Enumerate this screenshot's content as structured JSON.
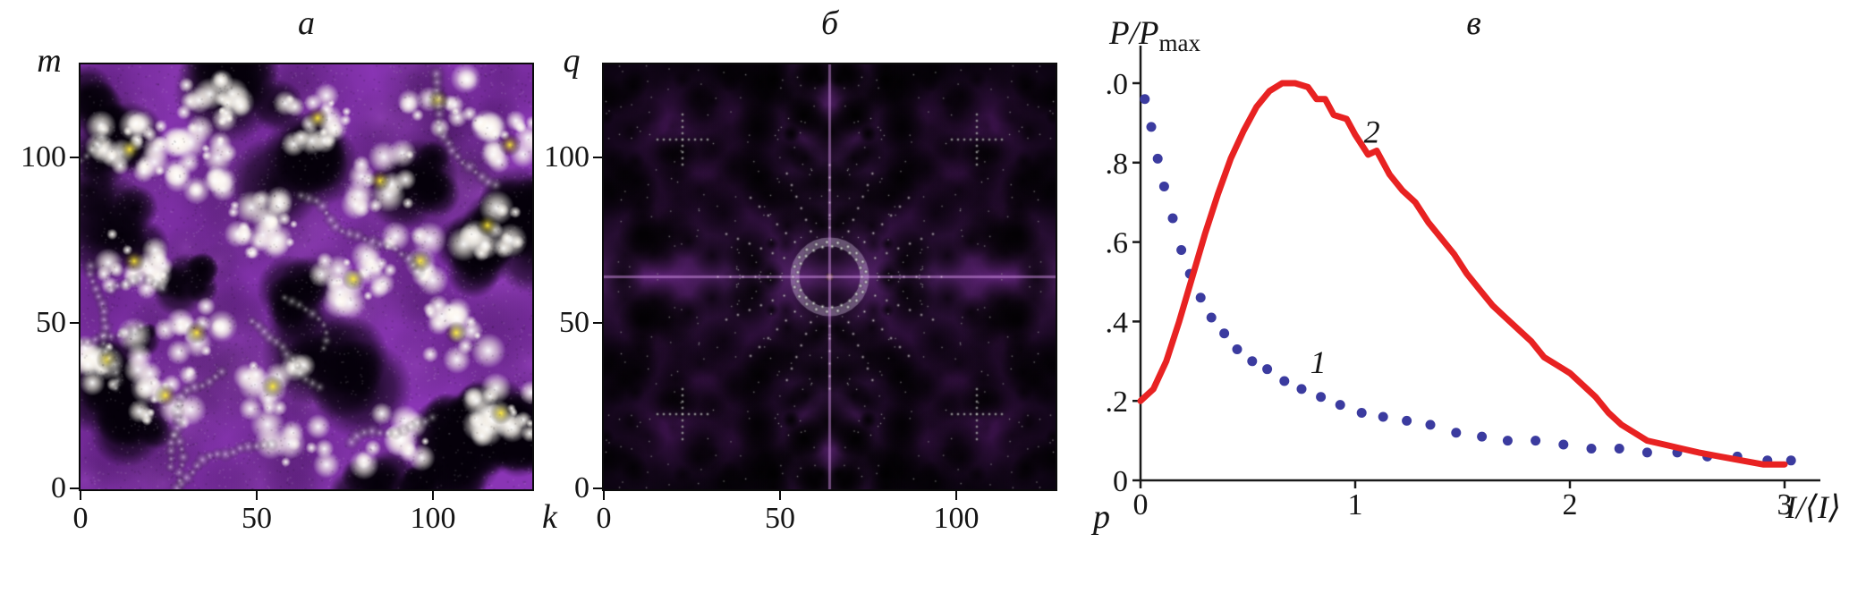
{
  "panels": {
    "a": {
      "title": "а",
      "ylabel": "m",
      "xlabel": "k",
      "yticks": [
        "100",
        "50",
        "0"
      ],
      "xticks": [
        "0",
        "50",
        "100"
      ]
    },
    "b": {
      "title": "б",
      "ylabel": "q",
      "xlabel": "p",
      "yticks": [
        "100",
        "50",
        "0"
      ],
      "xticks": [
        "0",
        "50",
        "100"
      ]
    },
    "c": {
      "title": "в",
      "ylabel_base": "P/P",
      "ylabel_sub": "max",
      "xlabel": "I/⟨I⟩"
    }
  },
  "chart_data": [
    {
      "panel": "а",
      "type": "heatmap",
      "content": "speckle intensity field with bright white-yellow spots and dark patches on purple background",
      "xlabel": "k",
      "ylabel": "m",
      "x_ticks": [
        0,
        50,
        100
      ],
      "y_ticks": [
        0,
        50,
        100
      ],
      "x_range": [
        0,
        128
      ],
      "y_range": [
        0,
        128
      ],
      "colors": {
        "mid": "#8a35b5",
        "low": "#050008",
        "high": "#ffffff",
        "peaks": "#ffe93c"
      }
    },
    {
      "panel": "б",
      "type": "heatmap",
      "content": "2D power spectrum, fourfold symmetric, central bright ring of dots with purple cross bands on dark background",
      "xlabel": "p",
      "ylabel": "q",
      "x_ticks": [
        0,
        50,
        100
      ],
      "y_ticks": [
        0,
        50,
        100
      ],
      "x_range": [
        0,
        128
      ],
      "y_range": [
        0,
        128
      ],
      "colors": {
        "background": "#0c0412",
        "mid": "#8228a0",
        "high": "#ffffff"
      }
    },
    {
      "panel": "в",
      "type": "line+scatter",
      "ylabel": "P/Pmax",
      "xlabel": "I/⟨I⟩",
      "xlim": [
        0,
        3.1
      ],
      "ylim": [
        0,
        1.05
      ],
      "x_tick_values": [
        0,
        1,
        2,
        3
      ],
      "x_tick_labels": [
        "0",
        "1",
        "2",
        "3"
      ],
      "y_tick_values": [
        1.0,
        0.8,
        0.6,
        0.4,
        0.2,
        0
      ],
      "y_tick_labels": [
        "1.0",
        "0.8",
        "0.6",
        "0.4",
        "0.2",
        "0"
      ],
      "series": [
        {
          "name": "1",
          "style": "dots",
          "color": "#3b3b9f",
          "label_pos": [
            0.79,
            0.27
          ],
          "points": [
            [
              0.02,
              0.96
            ],
            [
              0.05,
              0.89
            ],
            [
              0.08,
              0.81
            ],
            [
              0.11,
              0.74
            ],
            [
              0.15,
              0.66
            ],
            [
              0.19,
              0.58
            ],
            [
              0.23,
              0.52
            ],
            [
              0.28,
              0.46
            ],
            [
              0.33,
              0.41
            ],
            [
              0.39,
              0.37
            ],
            [
              0.45,
              0.33
            ],
            [
              0.52,
              0.3
            ],
            [
              0.59,
              0.28
            ],
            [
              0.67,
              0.25
            ],
            [
              0.75,
              0.23
            ],
            [
              0.84,
              0.21
            ],
            [
              0.93,
              0.19
            ],
            [
              1.03,
              0.17
            ],
            [
              1.13,
              0.16
            ],
            [
              1.24,
              0.15
            ],
            [
              1.35,
              0.14
            ],
            [
              1.47,
              0.12
            ],
            [
              1.59,
              0.11
            ],
            [
              1.71,
              0.1
            ],
            [
              1.84,
              0.1
            ],
            [
              1.97,
              0.09
            ],
            [
              2.1,
              0.08
            ],
            [
              2.23,
              0.08
            ],
            [
              2.36,
              0.07
            ],
            [
              2.5,
              0.07
            ],
            [
              2.64,
              0.06
            ],
            [
              2.78,
              0.06
            ],
            [
              2.92,
              0.05
            ],
            [
              3.03,
              0.05
            ]
          ]
        },
        {
          "name": "2",
          "style": "line",
          "color": "#e82222",
          "label_pos": [
            1.04,
            0.85
          ],
          "points": [
            [
              0.0,
              0.2
            ],
            [
              0.06,
              0.23
            ],
            [
              0.12,
              0.3
            ],
            [
              0.18,
              0.4
            ],
            [
              0.24,
              0.51
            ],
            [
              0.3,
              0.62
            ],
            [
              0.36,
              0.72
            ],
            [
              0.42,
              0.81
            ],
            [
              0.48,
              0.88
            ],
            [
              0.54,
              0.94
            ],
            [
              0.6,
              0.98
            ],
            [
              0.66,
              1.0
            ],
            [
              0.72,
              1.0
            ],
            [
              0.78,
              0.99
            ],
            [
              0.82,
              0.96
            ],
            [
              0.86,
              0.96
            ],
            [
              0.9,
              0.92
            ],
            [
              0.96,
              0.91
            ],
            [
              1.0,
              0.87
            ],
            [
              1.06,
              0.82
            ],
            [
              1.1,
              0.83
            ],
            [
              1.16,
              0.77
            ],
            [
              1.22,
              0.73
            ],
            [
              1.28,
              0.7
            ],
            [
              1.34,
              0.65
            ],
            [
              1.4,
              0.61
            ],
            [
              1.46,
              0.57
            ],
            [
              1.52,
              0.52
            ],
            [
              1.58,
              0.48
            ],
            [
              1.64,
              0.44
            ],
            [
              1.7,
              0.41
            ],
            [
              1.76,
              0.38
            ],
            [
              1.82,
              0.35
            ],
            [
              1.88,
              0.31
            ],
            [
              1.94,
              0.29
            ],
            [
              2.0,
              0.27
            ],
            [
              2.06,
              0.24
            ],
            [
              2.12,
              0.21
            ],
            [
              2.18,
              0.17
            ],
            [
              2.24,
              0.14
            ],
            [
              2.3,
              0.12
            ],
            [
              2.36,
              0.1
            ],
            [
              2.44,
              0.09
            ],
            [
              2.52,
              0.08
            ],
            [
              2.6,
              0.07
            ],
            [
              2.7,
              0.06
            ],
            [
              2.8,
              0.05
            ],
            [
              2.9,
              0.04
            ],
            [
              3.0,
              0.04
            ]
          ]
        }
      ]
    }
  ]
}
